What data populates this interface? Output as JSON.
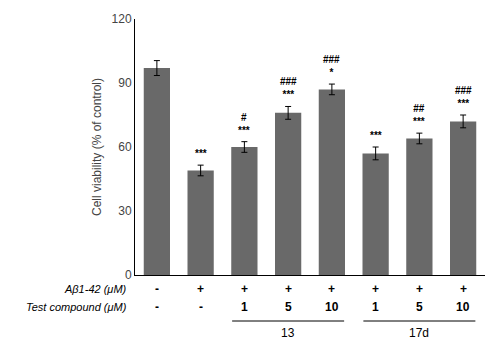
{
  "chart_data": {
    "type": "bar",
    "categories": [
      null,
      null,
      null,
      null,
      null,
      null,
      null,
      null
    ],
    "values": [
      97,
      49,
      60,
      76,
      87,
      57,
      64,
      72
    ],
    "errors": [
      3.5,
      2.5,
      2.5,
      3.0,
      2.5,
      3.0,
      2.5,
      3.0
    ],
    "color": "#696969",
    "ylabel": "Cell viability (% of control)",
    "ylim": [
      0,
      120
    ],
    "yticks": [
      0,
      30,
      60,
      90,
      120
    ],
    "grid": false,
    "tick_labels": "y",
    "annotations": [
      {
        "category": 1,
        "text": "***"
      },
      {
        "category": 2,
        "text": "#\n***"
      },
      {
        "category": 3,
        "text": "###\n***"
      },
      {
        "category": 4,
        "text": "###\n*"
      },
      {
        "category": 5,
        "text": "***"
      },
      {
        "category": 6,
        "text": "##\n***"
      },
      {
        "category": 7,
        "text": "###\n***"
      }
    ],
    "rows": [
      {
        "label": "Aβ1-42 (μM)",
        "labels": [
          "-",
          "+",
          "+",
          "+",
          "+",
          "+",
          "+",
          "+"
        ]
      },
      {
        "label": "Test compound (μM)",
        "labels": [
          "-",
          "-",
          "1",
          "5",
          "10",
          "1",
          "5",
          "10"
        ]
      }
    ],
    "groups": [
      {
        "label": "13",
        "first": 2,
        "last": 4
      },
      {
        "label": "17d",
        "first": 5,
        "last": 7
      }
    ]
  }
}
